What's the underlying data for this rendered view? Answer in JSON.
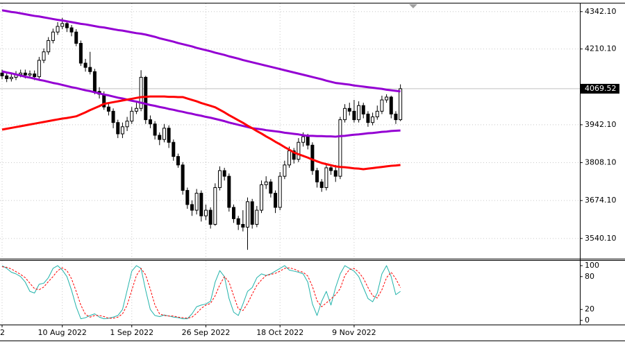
{
  "chart_data": {
    "type": "candlestick",
    "categories": [
      "2",
      null,
      null,
      null,
      null,
      null,
      null,
      null,
      null,
      null,
      null,
      null,
      null,
      "10 Aug 2022",
      null,
      null,
      null,
      null,
      null,
      null,
      null,
      null,
      null,
      null,
      null,
      null,
      null,
      null,
      "1 Sep 2022",
      null,
      null,
      null,
      null,
      null,
      null,
      null,
      null,
      null,
      null,
      null,
      null,
      null,
      null,
      null,
      "26 Sep 2022",
      null,
      null,
      null,
      null,
      null,
      null,
      null,
      null,
      null,
      null,
      null,
      null,
      null,
      null,
      null,
      "18 Oct 2022",
      null,
      null,
      null,
      null,
      null,
      null,
      null,
      null,
      null,
      null,
      null,
      null,
      null,
      null,
      null,
      "9 Nov 2022",
      null,
      null,
      null,
      null,
      null,
      null,
      null,
      null,
      null,
      null
    ],
    "open": [
      4125,
      4115,
      4105,
      4110,
      4120,
      4125,
      4118,
      4122,
      4112,
      4170,
      4200,
      4240,
      4270,
      4290,
      4300,
      4285,
      4270,
      4230,
      4160,
      4145,
      4130,
      4060,
      4050,
      4005,
      3990,
      3950,
      3910,
      3935,
      3955,
      3990,
      4000,
      4110,
      3960,
      3945,
      3905,
      3890,
      3930,
      3880,
      3830,
      3800,
      3710,
      3660,
      3640,
      3700,
      3620,
      3640,
      3590,
      3720,
      3780,
      3760,
      3650,
      3610,
      3590,
      3580,
      3670,
      3590,
      3640,
      3730,
      3740,
      3700,
      3650,
      3760,
      3800,
      3850,
      3820,
      3880,
      3900,
      3870,
      3780,
      3740,
      3720,
      3790,
      3780,
      3760,
      3960,
      4000,
      3990,
      3960,
      4010,
      3980,
      3950,
      3970,
      3990,
      4030,
      4040,
      3980,
      3960
    ],
    "high": [
      4137,
      4127,
      4122,
      4132,
      4137,
      4137,
      4134,
      4134,
      4182,
      4212,
      4252,
      4282,
      4305,
      4320,
      4310,
      4295,
      4280,
      4240,
      4175,
      4200,
      4140,
      4075,
      4060,
      4020,
      4000,
      3960,
      3950,
      3970,
      4005,
      4020,
      4135,
      4115,
      3975,
      3955,
      3915,
      3945,
      3940,
      3890,
      3840,
      3810,
      3720,
      3675,
      3715,
      3710,
      3660,
      3650,
      3735,
      3795,
      3790,
      3770,
      3660,
      3620,
      3640,
      3685,
      3680,
      3655,
      3745,
      3760,
      3750,
      3710,
      3775,
      3815,
      3865,
      3860,
      3895,
      3915,
      3910,
      3880,
      3790,
      3750,
      3805,
      3800,
      3800,
      3970,
      4015,
      4020,
      4030,
      4025,
      4020,
      3990,
      3985,
      4010,
      4045,
      4050,
      4045,
      3990,
      4085
    ],
    "low": [
      4103,
      4093,
      4095,
      4100,
      4110,
      4106,
      4108,
      4100,
      4105,
      4160,
      4190,
      4230,
      4260,
      4280,
      4270,
      4255,
      4220,
      4150,
      4130,
      4120,
      4050,
      4035,
      3995,
      3975,
      3930,
      3895,
      3895,
      3920,
      3945,
      3980,
      3990,
      3945,
      3930,
      3890,
      3870,
      3880,
      3860,
      3815,
      3790,
      3695,
      3645,
      3620,
      3625,
      3600,
      3605,
      3575,
      3585,
      3710,
      3745,
      3635,
      3595,
      3570,
      3565,
      3500,
      3575,
      3580,
      3630,
      3715,
      3685,
      3630,
      3640,
      3750,
      3790,
      3805,
      3810,
      3865,
      3855,
      3765,
      3720,
      3705,
      3710,
      3765,
      3740,
      3750,
      3950,
      3975,
      3950,
      3950,
      3965,
      3935,
      3940,
      3960,
      3980,
      4020,
      3965,
      3945,
      3955
    ],
    "close": [
      4115,
      4105,
      4110,
      4120,
      4125,
      4118,
      4122,
      4112,
      4170,
      4200,
      4240,
      4270,
      4290,
      4300,
      4285,
      4270,
      4230,
      4160,
      4145,
      4130,
      4060,
      4050,
      4005,
      3990,
      3950,
      3910,
      3935,
      3955,
      3990,
      4000,
      4110,
      3960,
      3945,
      3905,
      3890,
      3930,
      3880,
      3830,
      3800,
      3710,
      3660,
      3640,
      3700,
      3620,
      3640,
      3590,
      3720,
      3780,
      3760,
      3650,
      3610,
      3590,
      3580,
      3670,
      3590,
      3640,
      3730,
      3740,
      3700,
      3650,
      3760,
      3800,
      3850,
      3820,
      3880,
      3900,
      3870,
      3780,
      3740,
      3720,
      3790,
      3780,
      3760,
      3960,
      4000,
      3990,
      3960,
      4010,
      3980,
      3950,
      3970,
      3990,
      4030,
      4040,
      3980,
      3960,
      4069.52
    ],
    "ylim": [
      3471,
      4371
    ],
    "yticks": [
      {
        "value": 3540.1,
        "label": "3540.10"
      },
      {
        "value": 3674.1,
        "label": "3674.10"
      },
      {
        "value": 3808.1,
        "label": "3808.10"
      },
      {
        "value": 3942.1,
        "label": "3942.10"
      },
      {
        "value": 4210.1,
        "label": "4210.10"
      },
      {
        "value": 4342.1,
        "label": "4342.10"
      }
    ],
    "current_price": {
      "value": 4069.52,
      "label": "4069.52"
    },
    "grid": true,
    "up_color": "#ffffff",
    "down_color": "#000000",
    "overlays": [
      {
        "color": "#9400d3",
        "values": [
          4347,
          4344,
          4341,
          4339,
          4336,
          4333,
          4330,
          4327,
          4325,
          4322,
          4319,
          4316,
          4313,
          4311,
          4308,
          4305,
          4302,
          4299,
          4297,
          4294,
          4291,
          4288,
          4286,
          4283,
          4280,
          4277,
          4275,
          4272,
          4269,
          4266,
          4264,
          4261,
          4257,
          4253,
          4248,
          4244,
          4240,
          4236,
          4231,
          4227,
          4223,
          4219,
          4214,
          4210,
          4206,
          4202,
          4197,
          4193,
          4189,
          4184,
          4180,
          4176,
          4171,
          4167,
          4163,
          4159,
          4155,
          4151,
          4147,
          4143,
          4139,
          4135,
          4131,
          4127,
          4123,
          4119,
          4115,
          4111,
          4107,
          4103,
          4098,
          4094,
          4090,
          4088,
          4086,
          4084,
          4081,
          4079,
          4077,
          4075,
          4073,
          4071,
          4069,
          4066,
          4064,
          4062,
          4060
        ]
      },
      {
        "color": "#9400d3",
        "values": [
          4131,
          4127,
          4124,
          4120,
          4116,
          4112,
          4109,
          4105,
          4101,
          4098,
          4094,
          4090,
          4087,
          4083,
          4079,
          4075,
          4072,
          4068,
          4064,
          4061,
          4057,
          4053,
          4049,
          4046,
          4042,
          4038,
          4035,
          4031,
          4027,
          4024,
          4020,
          4016,
          4012,
          4009,
          4005,
          4002,
          3998,
          3995,
          3991,
          3988,
          3984,
          3981,
          3977,
          3974,
          3970,
          3967,
          3963,
          3959,
          3955,
          3950,
          3946,
          3942,
          3938,
          3934,
          3930,
          3928,
          3926,
          3923,
          3921,
          3919,
          3917,
          3914,
          3912,
          3910,
          3908,
          3905,
          3903,
          3903,
          3902,
          3902,
          3901,
          3901,
          3900,
          3902,
          3903,
          3905,
          3907,
          3908,
          3910,
          3912,
          3913,
          3915,
          3917,
          3918,
          3920,
          3921,
          3922
        ]
      },
      {
        "color": "#ff0000",
        "values": [
          3925,
          3928,
          3931,
          3934,
          3937,
          3940,
          3943,
          3946,
          3949,
          3952,
          3955,
          3958,
          3961,
          3964,
          3966,
          3969,
          3972,
          3979,
          3986,
          3994,
          4001,
          4008,
          4016,
          4019,
          4022,
          4025,
          4028,
          4031,
          4034,
          4037,
          4040,
          4041,
          4042,
          4042,
          4042,
          4042,
          4041,
          4041,
          4040,
          4040,
          4035,
          4030,
          4025,
          4019,
          4014,
          4009,
          4004,
          3995,
          3986,
          3976,
          3967,
          3958,
          3949,
          3939,
          3930,
          3920,
          3911,
          3901,
          3892,
          3882,
          3873,
          3863,
          3854,
          3844,
          3838,
          3832,
          3826,
          3819,
          3813,
          3807,
          3803,
          3799,
          3795,
          3793,
          3792,
          3790,
          3788,
          3787,
          3785,
          3787,
          3789,
          3791,
          3793,
          3795,
          3797,
          3798,
          3800
        ]
      }
    ],
    "indicator": {
      "type": "line",
      "ylim": [
        -7.6,
        108.9
      ],
      "yticks": [
        0,
        20,
        80,
        100
      ],
      "series": [
        {
          "color": "#20b2aa",
          "dashed": false,
          "values": [
            100,
            95,
            88,
            85,
            80,
            70,
            53,
            50,
            66,
            68,
            78,
            95,
            100,
            92,
            80,
            55,
            25,
            3,
            5,
            9,
            12,
            6,
            3,
            4,
            6,
            9,
            20,
            55,
            90,
            100,
            95,
            55,
            20,
            9,
            7,
            10,
            8,
            6,
            5,
            3,
            3,
            12,
            25,
            28,
            30,
            35,
            70,
            91,
            80,
            40,
            15,
            9,
            30,
            53,
            60,
            78,
            85,
            82,
            85,
            90,
            95,
            100,
            92,
            90,
            88,
            85,
            70,
            30,
            9,
            35,
            53,
            28,
            60,
            85,
            100,
            95,
            90,
            80,
            60,
            40,
            34,
            50,
            85,
            100,
            80,
            47,
            53
          ]
        },
        {
          "color": "#ff0000",
          "dashed": true,
          "values": [
            98,
            97,
            94,
            89,
            84,
            78,
            68,
            58,
            56,
            61,
            71,
            80,
            91,
            96,
            91,
            76,
            53,
            28,
            11,
            6,
            9,
            9,
            7,
            4,
            4,
            6,
            12,
            28,
            55,
            82,
            95,
            83,
            57,
            28,
            12,
            9,
            8,
            8,
            6,
            5,
            4,
            6,
            13,
            22,
            28,
            31,
            45,
            65,
            80,
            70,
            45,
            21,
            18,
            31,
            48,
            64,
            74,
            82,
            84,
            86,
            90,
            95,
            96,
            94,
            90,
            88,
            81,
            62,
            36,
            25,
            32,
            39,
            47,
            58,
            82,
            93,
            95,
            88,
            77,
            60,
            45,
            41,
            56,
            78,
            88,
            76,
            60
          ]
        }
      ]
    }
  }
}
